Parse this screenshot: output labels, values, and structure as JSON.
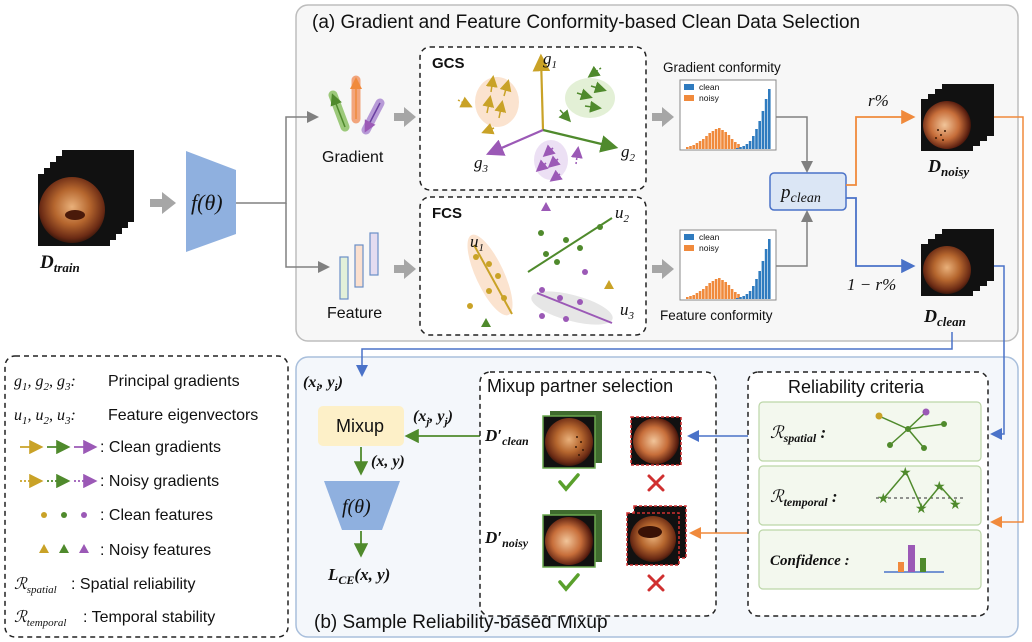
{
  "panel_a": {
    "title": "(a) Gradient and Feature Conformity-based Clean Data Selection",
    "gcs_label": "GCS",
    "fcs_label": "FCS",
    "gradient_label": "Gradient",
    "feature_label": "Feature",
    "gradient_conformity": "Gradient conformity",
    "feature_conformity": "Feature conformity",
    "hist_legend": [
      "clean",
      "noisy"
    ],
    "g1": "g",
    "g1_sub": "1",
    "g2": "g",
    "g2_sub": "2",
    "g3": "g",
    "g3_sub": "3",
    "u1": "u",
    "u1_sub": "1",
    "u2": "u",
    "u2_sub": "2",
    "u3": "u",
    "u3_sub": "3",
    "p_clean": "p",
    "p_clean_sub": "clean",
    "r_percent": "r%",
    "one_minus_r": "1 − r%",
    "d_noisy": "D",
    "d_noisy_sub": "noisy",
    "d_clean": "D",
    "d_clean_sub": "clean",
    "d_train": "D",
    "d_train_sub": "train",
    "f_theta": "f(θ)"
  },
  "panel_b": {
    "title": "(b) Sample Reliability-based Mixup",
    "xi_yi": "(x",
    "xi_sub": "i",
    "yi_mid": ", y",
    "yi_sub": "i",
    "xj_yj": "(x",
    "xj_sub": "j",
    "yj_mid": ", y",
    "yj_sub": "j",
    "mixup": "Mixup",
    "xy": "(x, y)",
    "f_theta": "f(θ)",
    "loss": "L",
    "loss_sub": "CE",
    "loss_arg": "(x, y)",
    "partner_title": "Mixup partner selection",
    "d_clean_prime": "D′",
    "d_clean_prime_sub": "clean",
    "d_noisy_prime": "D′",
    "d_noisy_prime_sub": "noisy",
    "reliability_title": "Reliability criteria",
    "r_spatial": "ℛ",
    "r_spatial_sub": "spatial",
    "r_temporal": "ℛ",
    "r_temporal_sub": "temporal",
    "confidence": "Confidence"
  },
  "legend": {
    "principal_gradients": "g1, g2, g3:  Principal gradients",
    "feature_eigenvectors": "u1, u2, u3:  Feature eigenvectors",
    "clean_gradients": ": Clean gradients",
    "noisy_gradients": ": Noisy gradients",
    "clean_features": ": Clean features",
    "noisy_features": ": Noisy features",
    "spatial_reliability": ": Spatial reliability",
    "temporal_stability": ": Temporal stability"
  },
  "colors": {
    "gold": "#c9a227",
    "green": "#4f8a2c",
    "purple": "#9b59b6",
    "orange_arrow": "#f08a3c",
    "blue_arrow": "#4a72c8",
    "net_blue": "#8fb0df",
    "hist_clean": "#2f7bbf",
    "hist_noisy": "#f08a3c"
  }
}
